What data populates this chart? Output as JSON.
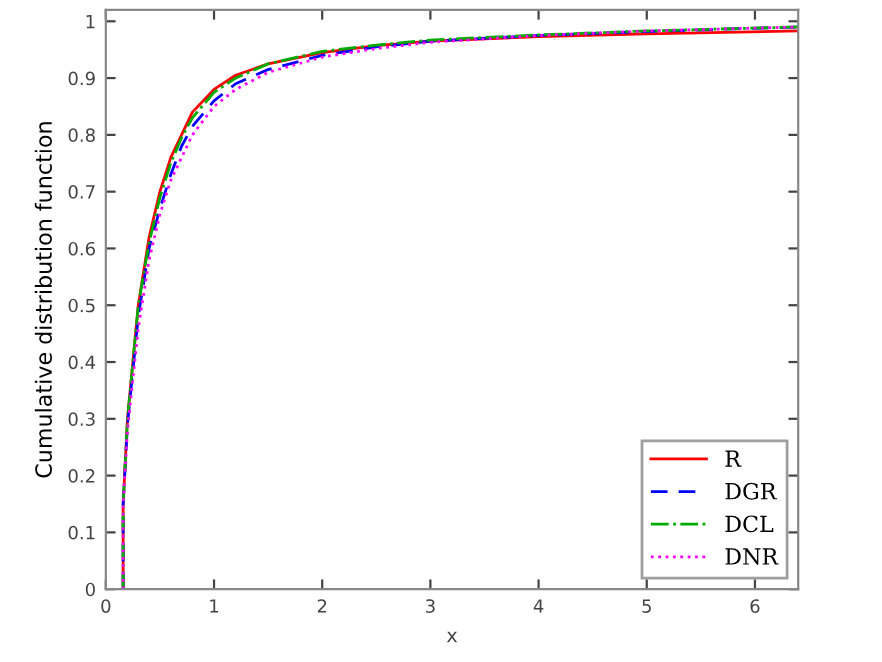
{
  "chart_data": {
    "type": "line",
    "xlabel": "x",
    "ylabel": "Cumulative distribution function",
    "xlim": [
      0,
      6.4
    ],
    "ylim": [
      0,
      1.02
    ],
    "xticks": [
      0,
      1,
      2,
      3,
      4,
      5,
      6
    ],
    "yticks": [
      0,
      0.1,
      0.2,
      0.3,
      0.4,
      0.5,
      0.6,
      0.7,
      0.8,
      0.9,
      1
    ],
    "grid": false,
    "legend": "bottom right",
    "series": [
      {
        "name": "R",
        "color": "#ff0000",
        "line_style": "solid",
        "x": [
          0.16,
          0.16,
          0.2,
          0.3,
          0.4,
          0.5,
          0.6,
          0.7,
          0.8,
          1.0,
          1.2,
          1.5,
          2,
          2.5,
          3,
          4,
          5,
          6.4
        ],
        "values": [
          0,
          0.15,
          0.3,
          0.5,
          0.62,
          0.7,
          0.76,
          0.8,
          0.84,
          0.88,
          0.905,
          0.925,
          0.945,
          0.957,
          0.965,
          0.973,
          0.978,
          0.983
        ]
      },
      {
        "name": "DGR",
        "color": "#0000ff",
        "line_style": "dashed",
        "x": [
          0.16,
          0.16,
          0.2,
          0.3,
          0.4,
          0.5,
          0.6,
          0.7,
          0.8,
          1.0,
          1.2,
          1.5,
          2,
          2.5,
          3,
          4,
          5,
          6.4
        ],
        "values": [
          0,
          0.15,
          0.29,
          0.48,
          0.6,
          0.67,
          0.73,
          0.78,
          0.815,
          0.86,
          0.89,
          0.915,
          0.94,
          0.955,
          0.965,
          0.975,
          0.982,
          0.99
        ]
      },
      {
        "name": "DCL",
        "color": "#00aa00",
        "line_style": "dashdot",
        "x": [
          0.16,
          0.16,
          0.2,
          0.3,
          0.4,
          0.5,
          0.6,
          0.7,
          0.8,
          1.0,
          1.2,
          1.5,
          2,
          2.5,
          3,
          4,
          5,
          6.4
        ],
        "values": [
          0,
          0.15,
          0.3,
          0.5,
          0.61,
          0.69,
          0.75,
          0.795,
          0.83,
          0.875,
          0.9,
          0.925,
          0.947,
          0.958,
          0.967,
          0.976,
          0.983,
          0.99
        ]
      },
      {
        "name": "DNR",
        "color": "#ff00ff",
        "line_style": "dotted",
        "x": [
          0.16,
          0.16,
          0.2,
          0.3,
          0.4,
          0.5,
          0.6,
          0.7,
          0.8,
          1.0,
          1.2,
          1.5,
          2,
          2.5,
          3,
          4,
          5,
          6.4
        ],
        "values": [
          0,
          0.15,
          0.28,
          0.46,
          0.58,
          0.66,
          0.72,
          0.76,
          0.8,
          0.85,
          0.88,
          0.91,
          0.937,
          0.952,
          0.963,
          0.975,
          0.983,
          0.99
        ]
      }
    ]
  }
}
